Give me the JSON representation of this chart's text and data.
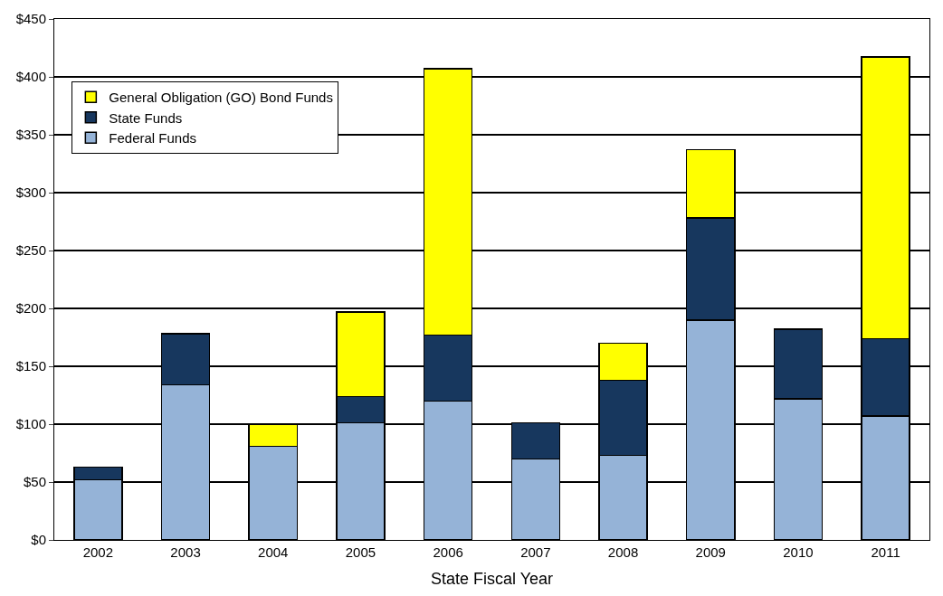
{
  "chart_data": {
    "type": "bar",
    "stacked": true,
    "xlabel": "State Fiscal Year",
    "categories": [
      "2002",
      "2003",
      "2004",
      "2005",
      "2006",
      "2007",
      "2008",
      "2009",
      "2010",
      "2011"
    ],
    "series": [
      {
        "name": "Federal Funds",
        "color": "#95b3d7",
        "values": [
          52,
          134,
          81,
          101,
          120,
          70,
          73,
          190,
          122,
          107
        ]
      },
      {
        "name": "State Funds",
        "color": "#17375e",
        "values": [
          11,
          44,
          null,
          23,
          57,
          31,
          65,
          88,
          60,
          67
        ]
      },
      {
        "name": "General Obligation (GO) Bond Funds",
        "color": "#ffff00",
        "values": [
          null,
          null,
          19,
          73,
          230,
          null,
          32,
          59,
          null,
          243
        ]
      }
    ],
    "ylim": [
      0,
      450
    ],
    "yticks": [
      {
        "value": 0,
        "label": "$0"
      },
      {
        "value": 50,
        "label": "$50"
      },
      {
        "value": 100,
        "label": "$100"
      },
      {
        "value": 150,
        "label": "$150"
      },
      {
        "value": 200,
        "label": "$200"
      },
      {
        "value": 250,
        "label": "$250"
      },
      {
        "value": 300,
        "label": "$300"
      },
      {
        "value": 350,
        "label": "$350"
      },
      {
        "value": 400,
        "label": "$400"
      },
      {
        "value": 450,
        "label": "$450"
      }
    ],
    "grid": "y",
    "legend": "top left"
  }
}
